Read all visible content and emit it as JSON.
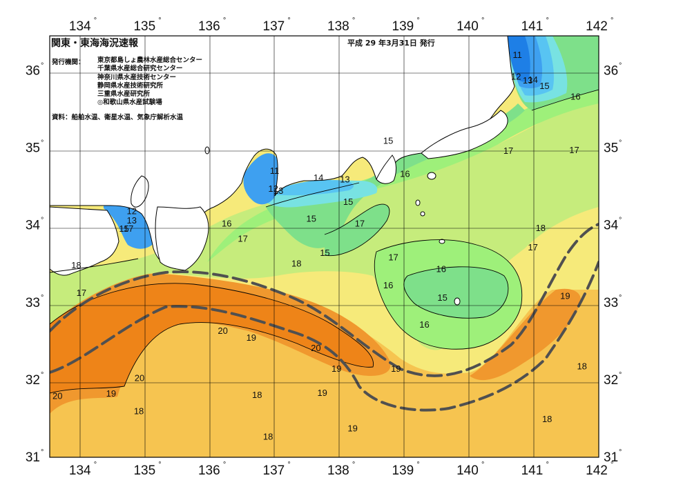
{
  "header": {
    "title": "関東・東海海況速報",
    "issue_date": "平成 29 年3月31日 発行"
  },
  "publishers": {
    "label": "発行機関：",
    "items": [
      "東京都島しょ農林水産総合センター",
      "千葉県水産総合研究センター",
      "神奈川県水産技術センター",
      "静岡県水産技術研究所",
      "三重県水産研究所",
      "◎和歌山県水産試験場"
    ]
  },
  "source_note": "資料：船舶水温、衛星水温、気象庁解析水温",
  "axes": {
    "degree_symbol": "°",
    "longitudes": [
      "134",
      "135",
      "136",
      "137",
      "138",
      "139",
      "140",
      "141",
      "142"
    ],
    "latitudes": [
      "36",
      "35",
      "34",
      "33",
      "32",
      "31"
    ]
  },
  "isotherm_labels": [
    {
      "text": "11",
      "lon": 140.74,
      "lat": 36.21
    },
    {
      "text": "12",
      "lon": 140.72,
      "lat": 35.93
    },
    {
      "text": "13",
      "lon": 140.9,
      "lat": 35.88
    },
    {
      "text": "14",
      "lon": 140.98,
      "lat": 35.89
    },
    {
      "text": "15",
      "lon": 141.16,
      "lat": 35.81
    },
    {
      "text": "16",
      "lon": 141.64,
      "lat": 35.67
    },
    {
      "text": "17",
      "lon": 141.62,
      "lat": 34.98
    },
    {
      "text": "17",
      "lon": 140.6,
      "lat": 34.97
    },
    {
      "text": "15",
      "lon": 138.74,
      "lat": 35.1
    },
    {
      "text": "16",
      "lon": 139.0,
      "lat": 34.67
    },
    {
      "text": "14",
      "lon": 137.66,
      "lat": 34.62
    },
    {
      "text": "13",
      "lon": 138.07,
      "lat": 34.6
    },
    {
      "text": "11",
      "lon": 136.98,
      "lat": 34.71
    },
    {
      "text": "12",
      "lon": 136.96,
      "lat": 34.48
    },
    {
      "text": "13",
      "lon": 137.04,
      "lat": 34.45
    },
    {
      "text": "15",
      "lon": 138.12,
      "lat": 34.31
    },
    {
      "text": "15",
      "lon": 137.55,
      "lat": 34.09
    },
    {
      "text": "17",
      "lon": 138.3,
      "lat": 34.03
    },
    {
      "text": "15",
      "lon": 137.76,
      "lat": 33.65
    },
    {
      "text": "16",
      "lon": 136.24,
      "lat": 34.03
    },
    {
      "text": "17",
      "lon": 136.49,
      "lat": 33.83
    },
    {
      "text": "18",
      "lon": 137.32,
      "lat": 33.51
    },
    {
      "text": "18",
      "lon": 141.1,
      "lat": 33.97
    },
    {
      "text": "17",
      "lon": 140.98,
      "lat": 33.72
    },
    {
      "text": "17",
      "lon": 138.82,
      "lat": 33.59
    },
    {
      "text": "16",
      "lon": 139.56,
      "lat": 33.44
    },
    {
      "text": "16",
      "lon": 138.74,
      "lat": 33.23
    },
    {
      "text": "15",
      "lon": 139.58,
      "lat": 33.07
    },
    {
      "text": "16",
      "lon": 139.3,
      "lat": 32.72
    },
    {
      "text": "19",
      "lon": 141.48,
      "lat": 33.09
    },
    {
      "text": "18",
      "lon": 141.74,
      "lat": 32.18
    },
    {
      "text": "18",
      "lon": 141.2,
      "lat": 31.5
    },
    {
      "text": "12",
      "lon": 134.77,
      "lat": 34.19
    },
    {
      "text": "13",
      "lon": 134.77,
      "lat": 34.07
    },
    {
      "text": "15",
      "lon": 134.65,
      "lat": 33.96
    },
    {
      "text": "17",
      "lon": 134.72,
      "lat": 33.96
    },
    {
      "text": "18",
      "lon": 133.91,
      "lat": 33.49
    },
    {
      "text": "17",
      "lon": 133.99,
      "lat": 33.13
    },
    {
      "text": "20",
      "lon": 136.18,
      "lat": 32.64
    },
    {
      "text": "19",
      "lon": 136.62,
      "lat": 32.55
    },
    {
      "text": "20",
      "lon": 137.62,
      "lat": 32.42
    },
    {
      "text": "19",
      "lon": 137.94,
      "lat": 32.15
    },
    {
      "text": "19",
      "lon": 138.86,
      "lat": 32.15
    },
    {
      "text": "20",
      "lon": 134.89,
      "lat": 32.03
    },
    {
      "text": "19",
      "lon": 134.45,
      "lat": 31.83
    },
    {
      "text": "20",
      "lon": 133.62,
      "lat": 31.8
    },
    {
      "text": "18",
      "lon": 134.88,
      "lat": 31.6
    },
    {
      "text": "18",
      "lon": 136.71,
      "lat": 31.81
    },
    {
      "text": "19",
      "lon": 137.72,
      "lat": 31.84
    },
    {
      "text": "19",
      "lon": 138.19,
      "lat": 31.38
    },
    {
      "text": "18",
      "lon": 136.88,
      "lat": 31.27
    }
  ],
  "colors": {
    "t11": "#1e7fe6",
    "t12": "#3ea0f0",
    "t13": "#58c4f2",
    "t14": "#78e2e2",
    "t15": "#7ee08a",
    "t16": "#9ef07a",
    "t17": "#c6ec7c",
    "t18": "#f6ea7a",
    "t19": "#f6c450",
    "t20": "#f0982e",
    "t21": "#ee8418",
    "land": "#ffffff",
    "coast": "#000000",
    "kuroshio_axis": "#505050",
    "grid": "#000000"
  }
}
